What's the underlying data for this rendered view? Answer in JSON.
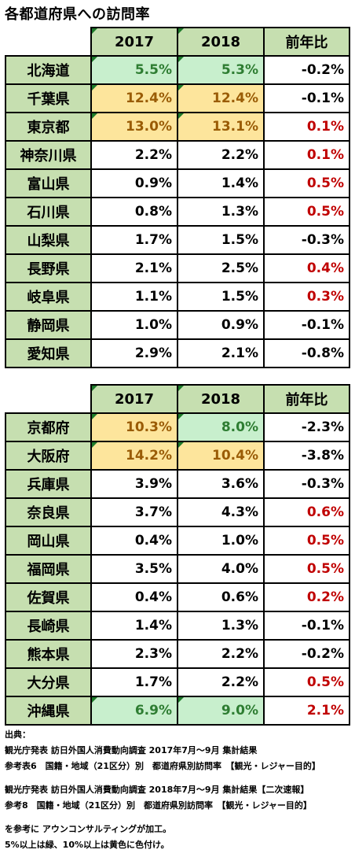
{
  "title": "各都道府県への訪問率",
  "table1": {
    "headers": [
      "2017",
      "2018",
      "前年比"
    ],
    "rows": [
      {
        "pref": "北海道",
        "v2017": "5.5%",
        "v2018": "5.3%",
        "diff": "-0.2%",
        "c2017": "green",
        "c2018": "green",
        "dir": "neg"
      },
      {
        "pref": "千葉県",
        "v2017": "12.4%",
        "v2018": "12.4%",
        "diff": "-0.1%",
        "c2017": "yellow",
        "c2018": "yellow",
        "dir": "neg"
      },
      {
        "pref": "東京都",
        "v2017": "13.0%",
        "v2018": "13.1%",
        "diff": "0.1%",
        "c2017": "yellow",
        "c2018": "yellow",
        "dir": "pos"
      },
      {
        "pref": "神奈川県",
        "v2017": "2.2%",
        "v2018": "2.2%",
        "diff": "0.1%",
        "c2017": "",
        "c2018": "",
        "dir": "pos"
      },
      {
        "pref": "富山県",
        "v2017": "0.9%",
        "v2018": "1.4%",
        "diff": "0.5%",
        "c2017": "",
        "c2018": "",
        "dir": "pos"
      },
      {
        "pref": "石川県",
        "v2017": "0.8%",
        "v2018": "1.3%",
        "diff": "0.5%",
        "c2017": "",
        "c2018": "",
        "dir": "pos"
      },
      {
        "pref": "山梨県",
        "v2017": "1.7%",
        "v2018": "1.5%",
        "diff": "-0.3%",
        "c2017": "",
        "c2018": "",
        "dir": "neg"
      },
      {
        "pref": "長野県",
        "v2017": "2.1%",
        "v2018": "2.5%",
        "diff": "0.4%",
        "c2017": "",
        "c2018": "",
        "dir": "pos"
      },
      {
        "pref": "岐阜県",
        "v2017": "1.1%",
        "v2018": "1.5%",
        "diff": "0.3%",
        "c2017": "",
        "c2018": "",
        "dir": "pos"
      },
      {
        "pref": "静岡県",
        "v2017": "1.0%",
        "v2018": "0.9%",
        "diff": "-0.1%",
        "c2017": "",
        "c2018": "",
        "dir": "neg"
      },
      {
        "pref": "愛知県",
        "v2017": "2.9%",
        "v2018": "2.1%",
        "diff": "-0.8%",
        "c2017": "",
        "c2018": "",
        "dir": "neg"
      }
    ]
  },
  "table2": {
    "headers": [
      "2017",
      "2018",
      "前年比"
    ],
    "rows": [
      {
        "pref": "京都府",
        "v2017": "10.3%",
        "v2018": "8.0%",
        "diff": "-2.3%",
        "c2017": "yellow",
        "c2018": "green",
        "dir": "neg"
      },
      {
        "pref": "大阪府",
        "v2017": "14.2%",
        "v2018": "10.4%",
        "diff": "-3.8%",
        "c2017": "yellow",
        "c2018": "yellow",
        "dir": "neg"
      },
      {
        "pref": "兵庫県",
        "v2017": "3.9%",
        "v2018": "3.6%",
        "diff": "-0.3%",
        "c2017": "",
        "c2018": "",
        "dir": "neg"
      },
      {
        "pref": "奈良県",
        "v2017": "3.7%",
        "v2018": "4.3%",
        "diff": "0.6%",
        "c2017": "",
        "c2018": "",
        "dir": "pos"
      },
      {
        "pref": "岡山県",
        "v2017": "0.4%",
        "v2018": "1.0%",
        "diff": "0.5%",
        "c2017": "",
        "c2018": "",
        "dir": "pos"
      },
      {
        "pref": "福岡県",
        "v2017": "3.5%",
        "v2018": "4.0%",
        "diff": "0.5%",
        "c2017": "",
        "c2018": "",
        "dir": "pos"
      },
      {
        "pref": "佐賀県",
        "v2017": "0.4%",
        "v2018": "0.6%",
        "diff": "0.2%",
        "c2017": "",
        "c2018": "",
        "dir": "pos"
      },
      {
        "pref": "長崎県",
        "v2017": "1.4%",
        "v2018": "1.3%",
        "diff": "-0.1%",
        "c2017": "",
        "c2018": "",
        "dir": "neg"
      },
      {
        "pref": "熊本県",
        "v2017": "2.3%",
        "v2018": "2.2%",
        "diff": "-0.2%",
        "c2017": "",
        "c2018": "",
        "dir": "neg"
      },
      {
        "pref": "大分県",
        "v2017": "1.7%",
        "v2018": "2.2%",
        "diff": "0.5%",
        "c2017": "",
        "c2018": "",
        "dir": "pos"
      },
      {
        "pref": "沖縄県",
        "v2017": "6.9%",
        "v2018": "9.0%",
        "diff": "2.1%",
        "c2017": "green",
        "c2018": "green",
        "dir": "pos"
      }
    ]
  },
  "notes": {
    "source_label": "出典：",
    "line1": "観光庁発表 訪日外国人消費動向調査 2017年7月～9月 集計結果",
    "line2": "参考表6　国籍・地域（21区分）別　都道府県別訪問率　【観光・レジャー目的】",
    "line3": "観光庁発表 訪日外国人消費動向調査 2018年7月～9月 集計結果【二次速報】",
    "line4": "参考8　国籍・地域（21区分）別　都道府県別訪問率　【観光・レジャー目的】",
    "line5": "を参考に アウンコンサルティングが加工。",
    "line6": "5%以上は緑、10%以上は黄色に色付け。"
  },
  "colors": {
    "header_bg": "#c6dfb0",
    "green_bg": "#c8efcd",
    "green_text": "#2e7d32",
    "yellow_bg": "#fde59c",
    "yellow_text": "#9a5c06",
    "positive_text": "#c00000"
  }
}
